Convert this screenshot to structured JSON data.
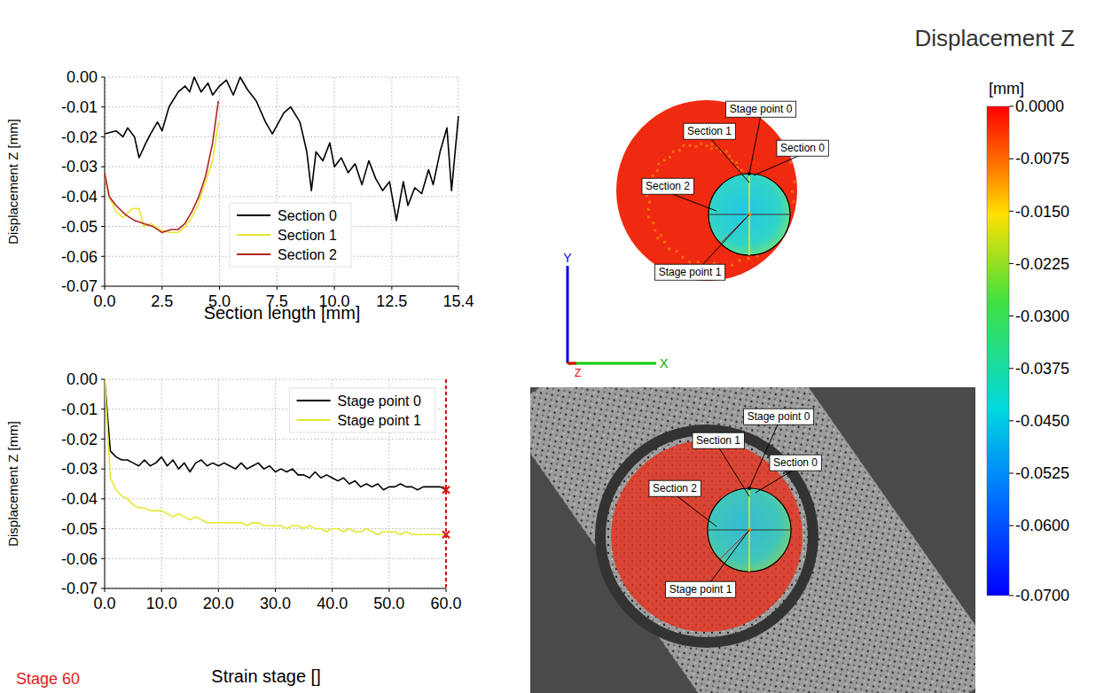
{
  "chart_data": [
    {
      "type": "line",
      "x_label": "Section length [mm]",
      "y_label": "Displacement Z [mm]",
      "xlim": [
        0,
        15.4
      ],
      "xticks": [
        {
          "value": 0,
          "label": "0.0"
        },
        2.5,
        {
          "value": 5,
          "label": "5.0"
        },
        7.5,
        {
          "value": 10,
          "label": "10.0"
        },
        12.5,
        15.4
      ],
      "ylim": [
        -0.07,
        0
      ],
      "yticks": [
        {
          "value": 0,
          "label": "0.00"
        },
        -0.01,
        -0.02,
        -0.03,
        -0.04,
        -0.05,
        -0.06,
        -0.07
      ],
      "grid": true,
      "legend": "lower center",
      "series": [
        {
          "name": "Section 0",
          "color": "#000000",
          "line_style": "solid",
          "x": [
            0,
            0.5,
            0.8,
            1.0,
            1.3,
            1.5,
            1.8,
            2.0,
            2.3,
            2.5,
            2.8,
            3.2,
            3.5,
            3.7,
            3.9,
            4.2,
            4.5,
            4.7,
            5.0,
            5.3,
            5.6,
            5.9,
            6.2,
            6.6,
            7.0,
            7.3,
            7.8,
            8.1,
            8.5,
            8.8,
            9.0,
            9.2,
            9.5,
            9.8,
            10.0,
            10.3,
            10.6,
            10.9,
            11.2,
            11.5,
            11.8,
            12.1,
            12.4,
            12.7,
            13.0,
            13.2,
            13.5,
            13.8,
            14.1,
            14.3,
            14.6,
            14.9,
            15.1,
            15.4
          ],
          "values": [
            -0.019,
            -0.018,
            -0.02,
            -0.017,
            -0.02,
            -0.027,
            -0.022,
            -0.019,
            -0.015,
            -0.018,
            -0.01,
            -0.005,
            -0.003,
            -0.005,
            0,
            -0.005,
            -0.002,
            -0.006,
            -0.003,
            -0.001,
            -0.006,
            0,
            -0.004,
            -0.008,
            -0.015,
            -0.019,
            -0.012,
            -0.01,
            -0.015,
            -0.025,
            -0.038,
            -0.025,
            -0.028,
            -0.022,
            -0.03,
            -0.027,
            -0.032,
            -0.029,
            -0.036,
            -0.028,
            -0.034,
            -0.038,
            -0.035,
            -0.048,
            -0.035,
            -0.043,
            -0.037,
            -0.039,
            -0.031,
            -0.036,
            -0.025,
            -0.017,
            -0.038,
            -0.013
          ]
        },
        {
          "name": "Section 1",
          "color": "#e6e632",
          "line_style": "solid",
          "x": [
            0,
            0.2,
            0.5,
            0.8,
            1.2,
            1.5,
            1.7,
            2.0,
            2.4,
            2.8,
            3.2,
            3.5,
            3.8,
            4.1,
            4.4,
            4.7,
            4.95
          ],
          "values": [
            -0.033,
            -0.04,
            -0.045,
            -0.047,
            -0.044,
            -0.044,
            -0.05,
            -0.049,
            -0.051,
            -0.052,
            -0.052,
            -0.05,
            -0.047,
            -0.042,
            -0.035,
            -0.028,
            -0.015
          ]
        },
        {
          "name": "Section 2",
          "color": "#b22222",
          "line_style": "solid",
          "x": [
            0,
            0.2,
            0.5,
            0.9,
            1.3,
            1.7,
            2.1,
            2.5,
            2.9,
            3.2,
            3.5,
            3.8,
            4.1,
            4.4,
            4.7,
            4.95
          ],
          "values": [
            -0.032,
            -0.04,
            -0.043,
            -0.046,
            -0.048,
            -0.049,
            -0.05,
            -0.052,
            -0.051,
            -0.051,
            -0.049,
            -0.045,
            -0.04,
            -0.033,
            -0.022,
            -0.008
          ]
        }
      ]
    },
    {
      "type": "line",
      "x_label": "Strain stage []",
      "y_label": "Displacement Z [mm]",
      "xlim": [
        0,
        60
      ],
      "xticks": [
        {
          "value": 0,
          "label": "0.0"
        },
        {
          "value": 10,
          "label": "10.0"
        },
        {
          "value": 20,
          "label": "20.0"
        },
        {
          "value": 30,
          "label": "30.0"
        },
        {
          "value": 40,
          "label": "40.0"
        },
        {
          "value": 50,
          "label": "50.0"
        },
        {
          "value": 60,
          "label": "60.0"
        }
      ],
      "ylim": [
        -0.07,
        0
      ],
      "yticks": [
        {
          "value": 0,
          "label": "0.00"
        },
        -0.01,
        -0.02,
        -0.03,
        -0.04,
        -0.05,
        -0.06,
        -0.07
      ],
      "grid": true,
      "legend": "upper right",
      "current_stage": 60,
      "series": [
        {
          "name": "Stage point 0",
          "color": "#000000",
          "line_style": "solid",
          "x": [
            0,
            1,
            2,
            3,
            4,
            5,
            6,
            7,
            8,
            9,
            10,
            11,
            12,
            13,
            14,
            15,
            16,
            17,
            18,
            19,
            20,
            21,
            22,
            23,
            24,
            25,
            26,
            27,
            28,
            29,
            30,
            31,
            32,
            33,
            34,
            35,
            36,
            37,
            38,
            39,
            40,
            41,
            42,
            43,
            44,
            45,
            46,
            47,
            48,
            49,
            50,
            51,
            52,
            53,
            54,
            55,
            56,
            57,
            58,
            59,
            60
          ],
          "values": [
            0,
            -0.024,
            -0.026,
            -0.027,
            -0.027,
            -0.028,
            -0.029,
            -0.027,
            -0.029,
            -0.028,
            -0.026,
            -0.029,
            -0.027,
            -0.03,
            -0.028,
            -0.031,
            -0.028,
            -0.027,
            -0.029,
            -0.028,
            -0.029,
            -0.028,
            -0.029,
            -0.03,
            -0.028,
            -0.03,
            -0.029,
            -0.028,
            -0.03,
            -0.029,
            -0.031,
            -0.03,
            -0.031,
            -0.03,
            -0.032,
            -0.032,
            -0.033,
            -0.031,
            -0.033,
            -0.032,
            -0.033,
            -0.034,
            -0.033,
            -0.035,
            -0.034,
            -0.036,
            -0.035,
            -0.036,
            -0.035,
            -0.037,
            -0.036,
            -0.036,
            -0.035,
            -0.036,
            -0.036,
            -0.037,
            -0.036,
            -0.036,
            -0.036,
            -0.036,
            -0.037
          ]
        },
        {
          "name": "Stage point 1",
          "color": "#e6e632",
          "line_style": "solid",
          "x": [
            0,
            1,
            2,
            3,
            4,
            5,
            6,
            7,
            8,
            9,
            10,
            11,
            12,
            13,
            14,
            15,
            16,
            17,
            18,
            19,
            20,
            21,
            22,
            23,
            24,
            25,
            26,
            27,
            28,
            29,
            30,
            31,
            32,
            33,
            34,
            35,
            36,
            37,
            38,
            39,
            40,
            41,
            42,
            43,
            44,
            45,
            46,
            47,
            48,
            49,
            50,
            51,
            52,
            53,
            54,
            55,
            56,
            57,
            58,
            59,
            60
          ],
          "values": [
            0,
            -0.033,
            -0.037,
            -0.039,
            -0.04,
            -0.042,
            -0.043,
            -0.043,
            -0.044,
            -0.044,
            -0.044,
            -0.045,
            -0.046,
            -0.045,
            -0.046,
            -0.047,
            -0.046,
            -0.047,
            -0.048,
            -0.048,
            -0.048,
            -0.048,
            -0.048,
            -0.048,
            -0.048,
            -0.049,
            -0.048,
            -0.048,
            -0.049,
            -0.049,
            -0.049,
            -0.049,
            -0.05,
            -0.049,
            -0.049,
            -0.05,
            -0.049,
            -0.05,
            -0.05,
            -0.051,
            -0.05,
            -0.05,
            -0.051,
            -0.05,
            -0.051,
            -0.051,
            -0.05,
            -0.051,
            -0.052,
            -0.051,
            -0.051,
            -0.051,
            -0.052,
            -0.051,
            -0.052,
            -0.052,
            -0.052,
            -0.052,
            -0.052,
            -0.052,
            -0.052
          ]
        }
      ]
    }
  ],
  "title": "Displacement Z",
  "stage_label": "Stage 60",
  "colorbar": {
    "unit": "[mm]",
    "range": [
      0,
      -0.07
    ],
    "ticks": [
      {
        "value": 0,
        "label": "0.0000"
      },
      -0.0075,
      {
        "value": -0.015,
        "label": "-0.0150"
      },
      -0.0225,
      {
        "value": -0.03,
        "label": "-0.0300"
      },
      -0.0375,
      {
        "value": -0.045,
        "label": "-0.0450"
      },
      -0.0525,
      {
        "value": -0.06,
        "label": "-0.0600"
      },
      {
        "value": -0.07,
        "label": "-0.0700"
      }
    ]
  },
  "map": {
    "labels": [
      "Stage point 0",
      "Section 1",
      "Section 0",
      "Section 2",
      "Stage point 1"
    ],
    "axes": [
      "Y",
      "X",
      "Z"
    ]
  }
}
